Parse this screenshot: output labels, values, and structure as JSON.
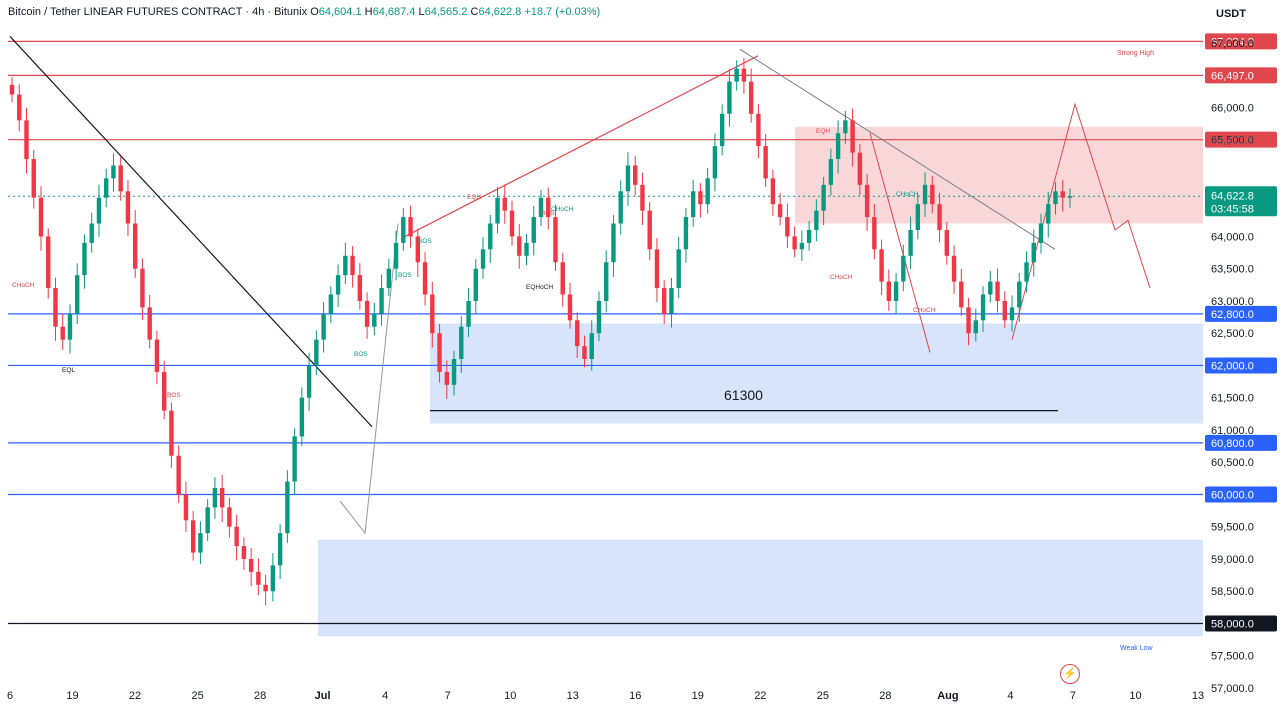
{
  "header": {
    "title": "Bitcoin / Tether LINEAR FUTURES CONTRACT · 4h · Bitunix",
    "o_label": "O",
    "o": "64,604.1",
    "h_label": "H",
    "h": "64,687.4",
    "l_label": "L",
    "l": "64,565.2",
    "c_label": "C",
    "c": "64,622.8",
    "change": "+18.7 (+0.03%)"
  },
  "currency": "USDT",
  "colors": {
    "up": "#089981",
    "down": "#f23645",
    "resistance": "#e0474c",
    "support_blue": "#2962ff",
    "zone_red": "#f7c9cc",
    "zone_blue": "#c9dbf7"
  },
  "chart_data": {
    "type": "candlestick",
    "y_range": [
      57000,
      67200
    ],
    "y_ticks": [
      "67,000.0",
      "66,000.0",
      "65,500.0",
      "64,000.0",
      "63,500.0",
      "63,000.0",
      "62,500.0",
      "61,500.0",
      "61,000.0",
      "60,500.0",
      "59,500.0",
      "59,000.0",
      "58,500.0",
      "57,500.0",
      "57,000.0"
    ],
    "x_ticks": [
      "6",
      "19",
      "22",
      "25",
      "28",
      "Jul",
      "4",
      "7",
      "10",
      "13",
      "16",
      "19",
      "22",
      "25",
      "28",
      "Aug",
      "4",
      "7",
      "10",
      "13"
    ],
    "price_tags": [
      {
        "label": "67,024.0",
        "value": 67024,
        "color": "#e0474c"
      },
      {
        "label": "66,497.0",
        "value": 66497,
        "color": "#e0474c"
      },
      {
        "label": "65,500.0",
        "value": 65500,
        "color": "#e0474c"
      },
      {
        "label": "62,800.0",
        "value": 62800,
        "color": "#2962ff"
      },
      {
        "label": "62,000.0",
        "value": 62000,
        "color": "#2962ff"
      },
      {
        "label": "60,800.0",
        "value": 60800,
        "color": "#2962ff"
      },
      {
        "label": "60,000.0",
        "value": 60000,
        "color": "#2962ff"
      },
      {
        "label": "58,000.0",
        "value": 58000,
        "color": "#131722"
      }
    ],
    "last_price": {
      "label": "64,622.8",
      "countdown": "03:45:58",
      "value": 64622.8
    },
    "horizontal_levels": [
      {
        "value": 67024,
        "color": "#e0474c"
      },
      {
        "value": 66497,
        "color": "#e0474c"
      },
      {
        "value": 65500,
        "color": "#e0474c"
      },
      {
        "value": 62800,
        "color": "#2962ff"
      },
      {
        "value": 62000,
        "color": "#2962ff"
      },
      {
        "value": 60800,
        "color": "#2962ff"
      },
      {
        "value": 60000,
        "color": "#2962ff"
      },
      {
        "value": 58000,
        "color": "#131722"
      }
    ],
    "zones": [
      {
        "kind": "supply",
        "from": 64200,
        "to": 65700
      },
      {
        "kind": "demand",
        "from": 61100,
        "to": 62650
      },
      {
        "kind": "demand",
        "from": 57800,
        "to": 59300
      }
    ],
    "annotations": {
      "strong_high": "Strong High",
      "weak_low": "Weak Low",
      "level_61300": "61300",
      "smc_labels": [
        "EQL",
        "CHoCH",
        "BOS",
        "BOS",
        "BOS",
        "BOS",
        "EQH",
        "BOS",
        "CHoCH",
        "EQHoCH",
        "EQH",
        "CHoCH",
        "CHoCH",
        "CHoCH"
      ]
    },
    "candles_ohlc_sample_closes": [
      66200,
      65800,
      65200,
      64600,
      64000,
      63200,
      62600,
      62400,
      62800,
      63400,
      63900,
      64200,
      64600,
      64900,
      65100,
      64700,
      64200,
      63500,
      62900,
      62400,
      61900,
      61300,
      60600,
      60000,
      59600,
      59100,
      59400,
      59800,
      60100,
      59800,
      59500,
      59200,
      59000,
      58800,
      58600,
      58500,
      58900,
      59400,
      60200,
      60900,
      61500,
      62000,
      62400,
      62800,
      63100,
      63400,
      63700,
      63400,
      63000,
      62600,
      62800,
      63200,
      63500,
      63900,
      64300,
      64000,
      63600,
      63100,
      62500,
      61900,
      61700,
      62100,
      62600,
      63000,
      63500,
      63800,
      64200,
      64600,
      64400,
      64000,
      63700,
      63900,
      64300,
      64600,
      64300,
      63600,
      63100,
      62700,
      62300,
      62100,
      62500,
      63000,
      63600,
      64200,
      64700,
      65100,
      64800,
      64400,
      63800,
      63200,
      62800,
      63200,
      63800,
      64300,
      64700,
      64500,
      64900,
      65400,
      65900,
      66400,
      66600,
      66400,
      65900,
      65400,
      64900,
      64500,
      64300,
      64000,
      63800,
      63900,
      64100,
      64400,
      64800,
      65200,
      65600,
      65800,
      65300,
      64800,
      64300,
      63800,
      63300,
      63000,
      63300,
      63700,
      64100,
      64500,
      64800,
      64500,
      64100,
      63700,
      63300,
      62900,
      62500,
      62700,
      63100,
      63300,
      63000,
      62700,
      62900,
      63300,
      63600,
      63900,
      64200,
      64500,
      64700,
      64600,
      64623
    ]
  }
}
